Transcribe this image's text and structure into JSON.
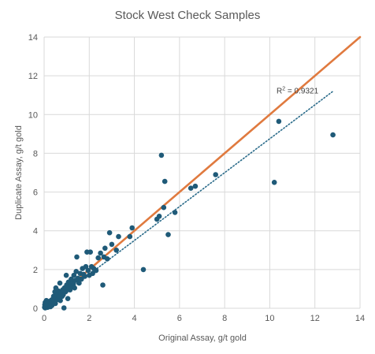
{
  "chart_data": {
    "type": "scatter",
    "title": "Stock West Check Samples",
    "xlabel": "Original Assay, g/t gold",
    "ylabel": "Duplicate Assay, g/t gold",
    "xlim": [
      0,
      14
    ],
    "ylim": [
      0,
      14
    ],
    "x_ticks": [
      "0",
      "2",
      "4",
      "6",
      "8",
      "10",
      "12",
      "14"
    ],
    "y_ticks": [
      "0",
      "2",
      "4",
      "6",
      "8",
      "10",
      "12",
      "14"
    ],
    "grid": true,
    "legend": "none",
    "colors": {
      "points": "#1f5a78",
      "one_to_one": "#e07a3f",
      "trend": "#2a6b8a",
      "grid": "#d9d9d9"
    },
    "one_to_one_line": {
      "x": [
        0,
        14
      ],
      "y": [
        0,
        14
      ]
    },
    "trendline": {
      "type": "linear",
      "x": [
        0,
        12.8
      ],
      "y": [
        0,
        11.2
      ]
    },
    "annotation": {
      "r2_prefix": "R",
      "r2_sup": "2",
      "r2_text": " = 0.9321",
      "at": [
        10.3,
        11.1
      ]
    },
    "points": [
      [
        0.02,
        0.05
      ],
      [
        0.03,
        0.18
      ],
      [
        0.05,
        0.3
      ],
      [
        0.05,
        0.02
      ],
      [
        0.08,
        0.1
      ],
      [
        0.1,
        0.4
      ],
      [
        0.12,
        0.22
      ],
      [
        0.15,
        0.05
      ],
      [
        0.18,
        0.28
      ],
      [
        0.2,
        0.12
      ],
      [
        0.22,
        0.35
      ],
      [
        0.25,
        0.18
      ],
      [
        0.28,
        0.08
      ],
      [
        0.3,
        0.25
      ],
      [
        0.32,
        0.42
      ],
      [
        0.35,
        0.15
      ],
      [
        0.38,
        0.3
      ],
      [
        0.4,
        0.5
      ],
      [
        0.42,
        0.62
      ],
      [
        0.45,
        0.38
      ],
      [
        0.48,
        0.85
      ],
      [
        0.5,
        0.25
      ],
      [
        0.52,
        1.05
      ],
      [
        0.55,
        0.55
      ],
      [
        0.58,
        0.7
      ],
      [
        0.6,
        0.45
      ],
      [
        0.62,
        0.9
      ],
      [
        0.65,
        0.6
      ],
      [
        0.7,
        1.3
      ],
      [
        0.72,
        0.4
      ],
      [
        0.75,
        0.78
      ],
      [
        0.8,
        0.62
      ],
      [
        0.82,
        0.95
      ],
      [
        0.85,
        0.7
      ],
      [
        0.88,
        0.02
      ],
      [
        0.9,
        1.05
      ],
      [
        0.95,
        0.85
      ],
      [
        0.98,
        1.7
      ],
      [
        1.0,
        1.2
      ],
      [
        1.02,
        0.95
      ],
      [
        1.05,
        0.5
      ],
      [
        1.08,
        1.35
      ],
      [
        1.1,
        1.1
      ],
      [
        1.15,
        0.95
      ],
      [
        1.18,
        1.25
      ],
      [
        1.2,
        1.5
      ],
      [
        1.25,
        1.1
      ],
      [
        1.3,
        1.3
      ],
      [
        1.32,
        1.7
      ],
      [
        1.35,
        1.05
      ],
      [
        1.4,
        1.45
      ],
      [
        1.42,
        1.9
      ],
      [
        1.45,
        2.65
      ],
      [
        1.5,
        1.55
      ],
      [
        1.55,
        1.3
      ],
      [
        1.6,
        1.8
      ],
      [
        1.65,
        1.5
      ],
      [
        1.7,
        2.05
      ],
      [
        1.75,
        1.75
      ],
      [
        1.8,
        1.65
      ],
      [
        1.85,
        2.15
      ],
      [
        1.9,
        2.9
      ],
      [
        1.95,
        1.95
      ],
      [
        2.0,
        1.7
      ],
      [
        2.05,
        2.9
      ],
      [
        2.1,
        2.15
      ],
      [
        2.15,
        1.8
      ],
      [
        2.2,
        2.05
      ],
      [
        2.3,
        1.95
      ],
      [
        2.4,
        2.6
      ],
      [
        2.5,
        2.85
      ],
      [
        2.6,
        1.2
      ],
      [
        2.65,
        2.65
      ],
      [
        2.7,
        3.1
      ],
      [
        2.8,
        2.55
      ],
      [
        2.9,
        3.9
      ],
      [
        3.0,
        3.3
      ],
      [
        3.2,
        3.0
      ],
      [
        3.3,
        3.7
      ],
      [
        3.8,
        3.7
      ],
      [
        3.9,
        4.15
      ],
      [
        4.4,
        2.0
      ],
      [
        5.0,
        4.6
      ],
      [
        5.1,
        4.75
      ],
      [
        5.2,
        7.9
      ],
      [
        5.3,
        5.2
      ],
      [
        5.35,
        6.55
      ],
      [
        5.5,
        3.8
      ],
      [
        5.8,
        4.95
      ],
      [
        6.5,
        6.2
      ],
      [
        6.7,
        6.3
      ],
      [
        7.6,
        6.9
      ],
      [
        10.2,
        6.5
      ],
      [
        10.4,
        9.65
      ],
      [
        12.8,
        8.95
      ]
    ]
  }
}
